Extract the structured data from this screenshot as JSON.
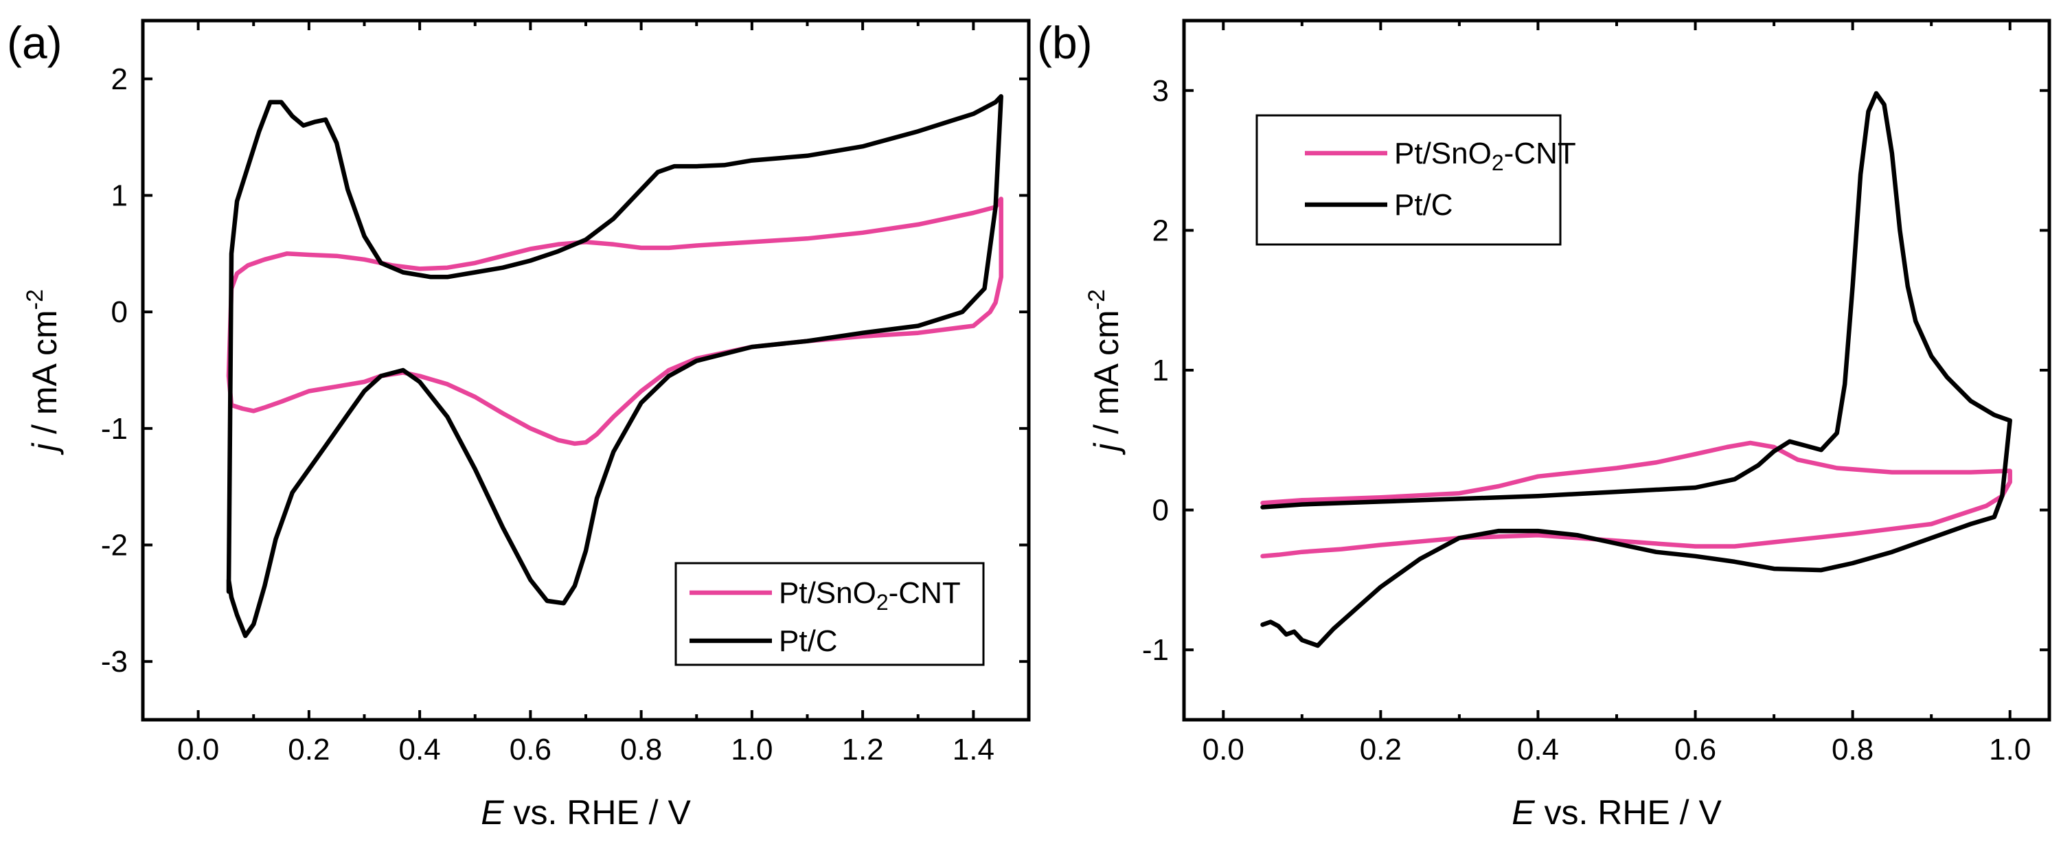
{
  "chart_data": [
    {
      "panel": "(a)",
      "type": "line",
      "xlabel_italic": "E",
      "xlabel_rest": " vs. RHE / V",
      "ylabel_italic": "j",
      "ylabel_rest": " / mA cm",
      "ylabel_sup": "-2",
      "xlim": [
        -0.1,
        1.5
      ],
      "ylim": [
        -3.5,
        2.5
      ],
      "xticks": [
        0.0,
        0.2,
        0.4,
        0.6,
        0.8,
        1.0,
        1.2,
        1.4
      ],
      "xticklabels": [
        "0.0",
        "0.2",
        "0.4",
        "0.6",
        "0.8",
        "1.0",
        "1.2",
        "1.4"
      ],
      "yticks": [
        -3,
        -2,
        -1,
        0,
        1,
        2
      ],
      "yticklabels": [
        "-3",
        "-2",
        "-1",
        "0",
        "1",
        "2"
      ],
      "legend_position": "bottom-right",
      "series": [
        {
          "name_main": "Pt/SnO",
          "name_sub": "2",
          "name_tail": "-CNT",
          "color": "#e8449a",
          "x": [
            0.06,
            0.07,
            0.09,
            0.12,
            0.16,
            0.2,
            0.25,
            0.3,
            0.35,
            0.4,
            0.45,
            0.5,
            0.55,
            0.6,
            0.65,
            0.7,
            0.75,
            0.8,
            0.85,
            0.9,
            1.0,
            1.1,
            1.2,
            1.3,
            1.4,
            1.44,
            1.45,
            1.45,
            1.44,
            1.43,
            1.4,
            1.3,
            1.2,
            1.1,
            1.0,
            0.9,
            0.85,
            0.8,
            0.75,
            0.72,
            0.7,
            0.68,
            0.65,
            0.6,
            0.55,
            0.5,
            0.45,
            0.4,
            0.37,
            0.33,
            0.3,
            0.25,
            0.2,
            0.15,
            0.12,
            0.1,
            0.08,
            0.06,
            0.055,
            0.06
          ],
          "y": [
            0.2,
            0.33,
            0.4,
            0.45,
            0.5,
            0.49,
            0.48,
            0.45,
            0.4,
            0.37,
            0.38,
            0.42,
            0.48,
            0.54,
            0.58,
            0.6,
            0.58,
            0.55,
            0.55,
            0.57,
            0.6,
            0.63,
            0.68,
            0.75,
            0.85,
            0.9,
            0.97,
            0.3,
            0.08,
            0.0,
            -0.12,
            -0.18,
            -0.21,
            -0.25,
            -0.3,
            -0.4,
            -0.5,
            -0.68,
            -0.9,
            -1.05,
            -1.12,
            -1.13,
            -1.1,
            -1.0,
            -0.87,
            -0.73,
            -0.62,
            -0.55,
            -0.52,
            -0.55,
            -0.6,
            -0.64,
            -0.68,
            -0.77,
            -0.82,
            -0.85,
            -0.83,
            -0.8,
            -0.55,
            0.2
          ]
        },
        {
          "name_main": "Pt/C",
          "name_sub": "",
          "name_tail": "",
          "color": "#000000",
          "x": [
            0.055,
            0.06,
            0.07,
            0.09,
            0.11,
            0.13,
            0.15,
            0.17,
            0.19,
            0.21,
            0.23,
            0.25,
            0.27,
            0.3,
            0.33,
            0.37,
            0.42,
            0.45,
            0.5,
            0.55,
            0.6,
            0.65,
            0.7,
            0.75,
            0.8,
            0.83,
            0.86,
            0.9,
            0.95,
            1.0,
            1.05,
            1.1,
            1.2,
            1.3,
            1.4,
            1.44,
            1.45,
            1.44,
            1.42,
            1.38,
            1.3,
            1.2,
            1.1,
            1.0,
            0.9,
            0.85,
            0.8,
            0.75,
            0.72,
            0.7,
            0.68,
            0.66,
            0.63,
            0.6,
            0.55,
            0.5,
            0.45,
            0.4,
            0.37,
            0.33,
            0.3,
            0.27,
            0.23,
            0.2,
            0.17,
            0.14,
            0.12,
            0.1,
            0.085,
            0.07,
            0.06,
            0.055,
            0.055
          ],
          "y": [
            -2.4,
            0.5,
            0.95,
            1.25,
            1.55,
            1.8,
            1.8,
            1.68,
            1.6,
            1.63,
            1.65,
            1.45,
            1.05,
            0.65,
            0.42,
            0.34,
            0.3,
            0.3,
            0.34,
            0.38,
            0.44,
            0.52,
            0.62,
            0.8,
            1.05,
            1.2,
            1.25,
            1.25,
            1.26,
            1.3,
            1.32,
            1.34,
            1.42,
            1.55,
            1.7,
            1.8,
            1.85,
            0.9,
            0.2,
            0.0,
            -0.12,
            -0.18,
            -0.25,
            -0.3,
            -0.42,
            -0.55,
            -0.78,
            -1.2,
            -1.6,
            -2.05,
            -2.35,
            -2.5,
            -2.48,
            -2.3,
            -1.85,
            -1.35,
            -0.9,
            -0.6,
            -0.5,
            -0.55,
            -0.68,
            -0.88,
            -1.15,
            -1.35,
            -1.55,
            -1.95,
            -2.35,
            -2.68,
            -2.78,
            -2.6,
            -2.45,
            -2.3,
            -2.4
          ]
        }
      ]
    },
    {
      "panel": "(b)",
      "type": "line",
      "xlabel_italic": "E",
      "xlabel_rest": " vs. RHE / V",
      "ylabel_italic": "j",
      "ylabel_rest": " / mA cm",
      "ylabel_sup": "-2",
      "xlim": [
        -0.05,
        1.05
      ],
      "ylim": [
        -1.5,
        3.5
      ],
      "xticks": [
        0.0,
        0.2,
        0.4,
        0.6,
        0.8,
        1.0
      ],
      "xticklabels": [
        "0.0",
        "0.2",
        "0.4",
        "0.6",
        "0.8",
        "1.0"
      ],
      "yticks": [
        -1,
        0,
        1,
        2,
        3
      ],
      "yticklabels": [
        "-1",
        "0",
        "1",
        "2",
        "3"
      ],
      "legend_position": "top-left",
      "series": [
        {
          "name_main": "Pt/SnO",
          "name_sub": "2",
          "name_tail": "-CNT",
          "color": "#e8449a",
          "x": [
            0.05,
            0.1,
            0.2,
            0.3,
            0.35,
            0.4,
            0.45,
            0.5,
            0.55,
            0.6,
            0.64,
            0.67,
            0.7,
            0.73,
            0.78,
            0.85,
            0.9,
            0.95,
            1.0,
            1.0,
            0.99,
            0.97,
            0.9,
            0.8,
            0.75,
            0.7,
            0.65,
            0.6,
            0.5,
            0.4,
            0.3,
            0.2,
            0.15,
            0.1,
            0.07,
            0.05
          ],
          "y": [
            0.05,
            0.07,
            0.09,
            0.12,
            0.17,
            0.24,
            0.27,
            0.3,
            0.34,
            0.4,
            0.45,
            0.48,
            0.45,
            0.36,
            0.3,
            0.27,
            0.27,
            0.27,
            0.28,
            0.2,
            0.1,
            0.03,
            -0.1,
            -0.17,
            -0.2,
            -0.23,
            -0.26,
            -0.26,
            -0.22,
            -0.18,
            -0.2,
            -0.25,
            -0.28,
            -0.3,
            -0.32,
            -0.33
          ]
        },
        {
          "name_main": "Pt/C",
          "name_sub": "",
          "name_tail": "",
          "color": "#000000",
          "x": [
            0.05,
            0.1,
            0.2,
            0.3,
            0.4,
            0.5,
            0.6,
            0.65,
            0.68,
            0.7,
            0.72,
            0.74,
            0.76,
            0.78,
            0.79,
            0.8,
            0.81,
            0.82,
            0.83,
            0.84,
            0.85,
            0.86,
            0.87,
            0.88,
            0.9,
            0.92,
            0.95,
            0.98,
            1.0,
            1.0,
            0.99,
            0.98,
            0.95,
            0.9,
            0.85,
            0.8,
            0.76,
            0.7,
            0.65,
            0.6,
            0.55,
            0.5,
            0.45,
            0.4,
            0.35,
            0.3,
            0.25,
            0.2,
            0.17,
            0.14,
            0.12,
            0.1,
            0.09,
            0.08,
            0.07,
            0.06,
            0.05
          ],
          "y": [
            0.02,
            0.04,
            0.06,
            0.08,
            0.1,
            0.13,
            0.16,
            0.22,
            0.32,
            0.42,
            0.49,
            0.46,
            0.43,
            0.55,
            0.9,
            1.6,
            2.4,
            2.85,
            2.98,
            2.9,
            2.55,
            2.0,
            1.6,
            1.35,
            1.1,
            0.95,
            0.78,
            0.68,
            0.64,
            0.64,
            0.1,
            -0.05,
            -0.1,
            -0.2,
            -0.3,
            -0.38,
            -0.43,
            -0.42,
            -0.37,
            -0.33,
            -0.3,
            -0.24,
            -0.18,
            -0.15,
            -0.15,
            -0.2,
            -0.35,
            -0.55,
            -0.7,
            -0.85,
            -0.97,
            -0.93,
            -0.87,
            -0.89,
            -0.83,
            -0.8,
            -0.82
          ]
        }
      ]
    }
  ]
}
